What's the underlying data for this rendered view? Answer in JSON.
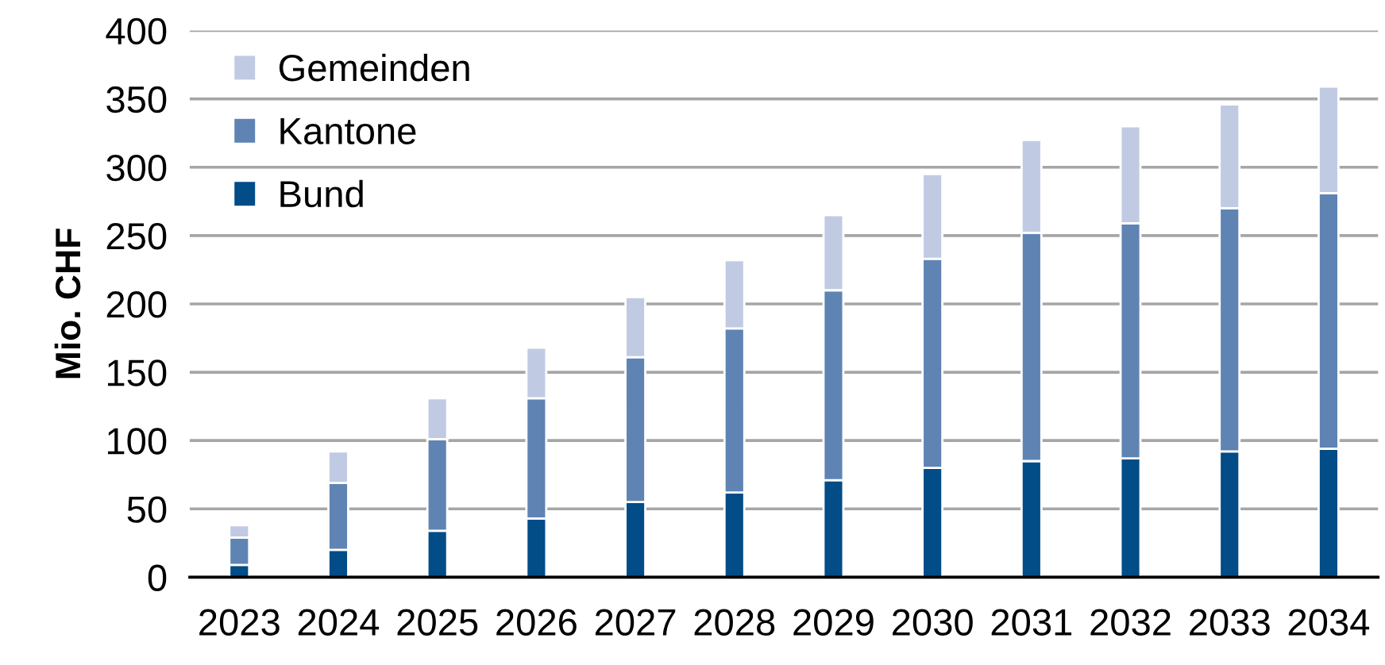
{
  "chart_data": {
    "type": "bar",
    "stacked": true,
    "ylabel": "Mio. CHF",
    "categories": [
      "2023",
      "2024",
      "2025",
      "2026",
      "2027",
      "2028",
      "2029",
      "2030",
      "2031",
      "2032",
      "2033",
      "2034"
    ],
    "series": [
      {
        "name": "Bund",
        "color": "#024c87",
        "values": [
          9,
          20,
          34,
          43,
          55,
          62,
          71,
          80,
          85,
          87,
          92,
          94
        ]
      },
      {
        "name": "Kantone",
        "color": "#5f84b3",
        "values": [
          20,
          49,
          67,
          88,
          106,
          120,
          139,
          153,
          167,
          172,
          178,
          187
        ]
      },
      {
        "name": "Gemeinden",
        "color": "#c0cbe3",
        "values": [
          9,
          23,
          30,
          37,
          44,
          50,
          55,
          62,
          68,
          71,
          76,
          78
        ]
      }
    ],
    "ylim": [
      0,
      400
    ],
    "yticks": [
      0,
      50,
      100,
      150,
      200,
      250,
      300,
      350,
      400
    ],
    "grid": "y",
    "legend": "top left"
  }
}
